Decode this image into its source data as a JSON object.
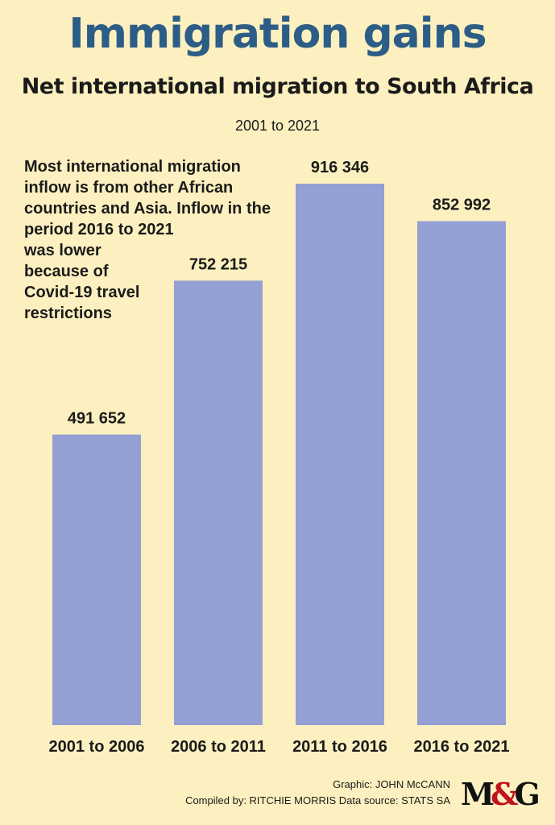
{
  "header": {
    "title": "Immigration gains",
    "subtitle": "Net international migration to South Africa",
    "daterange": "2001 to 2021"
  },
  "note": {
    "lines": [
      "Most international migration",
      "inflow is from other African",
      "countries and Asia. Inflow in the",
      "period 2016 to 2021",
      "was lower",
      "because of",
      "Covid-19 travel",
      "restrictions"
    ]
  },
  "chart_data": {
    "type": "bar",
    "title": "Immigration gains",
    "subtitle": "Net international migration to South Africa",
    "categories": [
      "2001 to 2006",
      "2006 to 2011",
      "2011 to 2016",
      "2016 to 2021"
    ],
    "values": [
      491652,
      752215,
      916346,
      852992
    ],
    "value_labels": [
      "491 652",
      "752 215",
      "916 346",
      "852 992"
    ],
    "xlabel": "",
    "ylabel": "",
    "ylim": [
      0,
      1000000
    ],
    "grid": false,
    "bar_color": "#949fd4"
  },
  "credits": {
    "graphic": "Graphic: JOHN McCANN",
    "compiled": "Compiled by: RITCHIE MORRIS  Data source: STATS SA"
  },
  "logo": {
    "left": "M",
    "amp": "&",
    "right": "G"
  },
  "colors": {
    "background": "#fdf0c0",
    "title": "#2c5d86",
    "text": "#1b1b1b",
    "bars": "#949fd4",
    "logo_accent": "#c0121f"
  }
}
